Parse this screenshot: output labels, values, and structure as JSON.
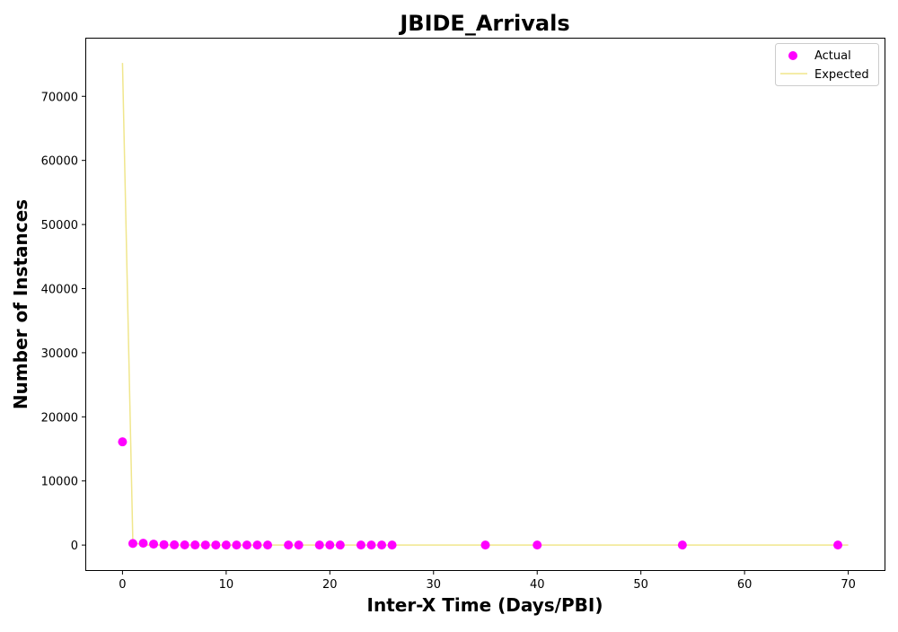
{
  "chart_data": {
    "type": "scatter",
    "title": "JBIDE_Arrivals",
    "xlabel": "Inter-X Time (Days/PBI)",
    "ylabel": "Number of Instances",
    "xlim": [
      -3.5,
      73.5
    ],
    "ylim": [
      -3900,
      79000
    ],
    "xticks": [
      0,
      10,
      20,
      30,
      40,
      50,
      60,
      70
    ],
    "yticks": [
      0,
      10000,
      20000,
      30000,
      40000,
      50000,
      60000,
      70000
    ],
    "grid": false,
    "legend_position": "top-right",
    "series": [
      {
        "name": "Actual",
        "kind": "scatter",
        "color": "#ff00ff",
        "points": [
          {
            "x": 0,
            "y": 16100
          },
          {
            "x": 1,
            "y": 250
          },
          {
            "x": 2,
            "y": 280
          },
          {
            "x": 3,
            "y": 150
          },
          {
            "x": 4,
            "y": 60
          },
          {
            "x": 5,
            "y": 30
          },
          {
            "x": 6,
            "y": 20
          },
          {
            "x": 7,
            "y": 15
          },
          {
            "x": 8,
            "y": 10
          },
          {
            "x": 9,
            "y": 8
          },
          {
            "x": 10,
            "y": 6
          },
          {
            "x": 11,
            "y": 5
          },
          {
            "x": 12,
            "y": 4
          },
          {
            "x": 13,
            "y": 3
          },
          {
            "x": 14,
            "y": 3
          },
          {
            "x": 16,
            "y": 2
          },
          {
            "x": 17,
            "y": 2
          },
          {
            "x": 19,
            "y": 2
          },
          {
            "x": 20,
            "y": 1
          },
          {
            "x": 21,
            "y": 1
          },
          {
            "x": 23,
            "y": 1
          },
          {
            "x": 24,
            "y": 1
          },
          {
            "x": 25,
            "y": 1
          },
          {
            "x": 26,
            "y": 1
          },
          {
            "x": 35,
            "y": 1
          },
          {
            "x": 40,
            "y": 1
          },
          {
            "x": 54,
            "y": 1
          },
          {
            "x": 69,
            "y": 1
          }
        ]
      },
      {
        "name": "Expected",
        "kind": "line",
        "color": "#f0e68c",
        "points": [
          {
            "x": 0,
            "y": 75200
          },
          {
            "x": 1,
            "y": 400
          },
          {
            "x": 2,
            "y": 5
          },
          {
            "x": 70,
            "y": 0
          }
        ]
      }
    ]
  }
}
